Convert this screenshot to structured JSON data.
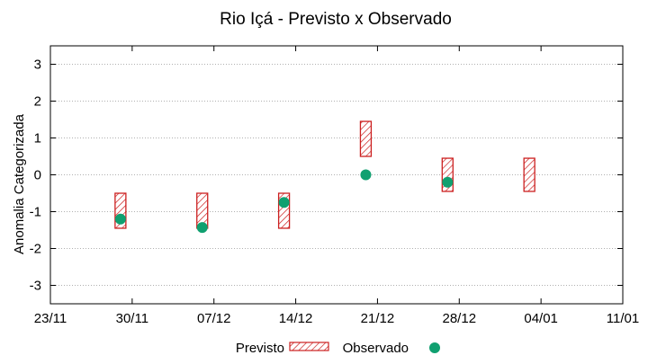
{
  "chart_data": {
    "type": "scatter",
    "title": "Rio Içá - Previsto x Observado",
    "ylabel": "Anomalia Categorizada",
    "xlabel": "",
    "ylim": [
      -3.5,
      3.5
    ],
    "xlim": [
      "23/11",
      "11/01"
    ],
    "grid": true,
    "y_ticks": [
      -3,
      -2,
      -1,
      0,
      1,
      2,
      3
    ],
    "x_ticks": [
      "23/11",
      "30/11",
      "07/12",
      "14/12",
      "21/12",
      "28/12",
      "04/01",
      "11/01"
    ],
    "legend": {
      "placement": "bottom",
      "entries": [
        "Previsto",
        "Observado"
      ]
    },
    "colors": {
      "previsto": "#cc2020",
      "observado": "#10a070",
      "grid": "#b0b0b0"
    },
    "series": [
      {
        "name": "Previsto",
        "kind": "range",
        "points": [
          {
            "x": "29/11",
            "low": -1.45,
            "high": -0.5
          },
          {
            "x": "06/12",
            "low": -1.45,
            "high": -0.5
          },
          {
            "x": "13/12",
            "low": -1.45,
            "high": -0.5
          },
          {
            "x": "20/12",
            "low": 0.5,
            "high": 1.45
          },
          {
            "x": "27/12",
            "low": -0.45,
            "high": 0.45
          },
          {
            "x": "03/01",
            "low": -0.45,
            "high": 0.45
          }
        ]
      },
      {
        "name": "Observado",
        "kind": "point",
        "points": [
          {
            "x": "29/11",
            "y": -1.2
          },
          {
            "x": "06/12",
            "y": -1.43
          },
          {
            "x": "13/12",
            "y": -0.75
          },
          {
            "x": "20/12",
            "y": 0.0
          },
          {
            "x": "27/12",
            "y": -0.2
          }
        ]
      }
    ]
  }
}
